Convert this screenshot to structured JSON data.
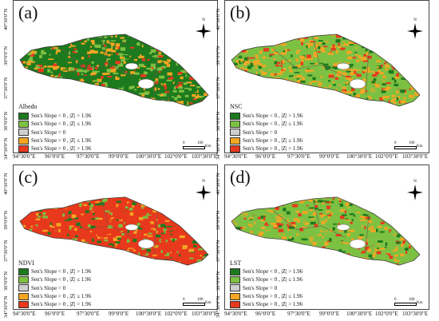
{
  "panels": [
    {
      "label": "(a)",
      "variable": "Albedo",
      "dominant": "mixed-green"
    },
    {
      "label": "(b)",
      "variable": "NSC",
      "dominant": "mixed-yellow"
    },
    {
      "label": "(c)",
      "variable": "NDVI",
      "dominant": "red"
    },
    {
      "label": "(d)",
      "variable": "LST",
      "dominant": "mixed-green-yellow"
    }
  ],
  "legend": [
    {
      "text": "Sen's Slope < 0 ,  |Z| > 1.96",
      "color": "#1e7a1e"
    },
    {
      "text": "Sen's Slope < 0 ,  |Z| ≤ 1.96",
      "color": "#7dc142"
    },
    {
      "text": "Sen's Slope = 0",
      "color": "#cfcfcf"
    },
    {
      "text": "Sen's Slope > 0 ,  |Z| ≤ 1.96",
      "color": "#f5a623"
    },
    {
      "text": "Sen's Slope > 0 ,  |Z| > 1.96",
      "color": "#e8391d"
    }
  ],
  "scale": {
    "zero": "0",
    "hundred": "100",
    "unit": "Km"
  },
  "compass": {
    "north": "N"
  },
  "x_ticks_left": [
    "94°30'0\"E",
    "96°0'0\"E",
    "97°30'0\"E",
    "99°0'0\"E"
  ],
  "x_ticks_right": [
    "100°30'0\"E",
    "102°0'0\"E",
    "103°30'0\"E"
  ],
  "x_ticks_right_panel": [
    "94°30'0\"E",
    "96°0'0\"E",
    "97°30'0\"E",
    "99°0'0\"E",
    "100°30'0\"E",
    "102°0'0\"E",
    "103°30'0\"E"
  ],
  "y_ticks": [
    "40°30'0\"N",
    "39°0'0\"N",
    "37°30'0\"N",
    "36°0'0\"N",
    "34°30'0\"N"
  ]
}
